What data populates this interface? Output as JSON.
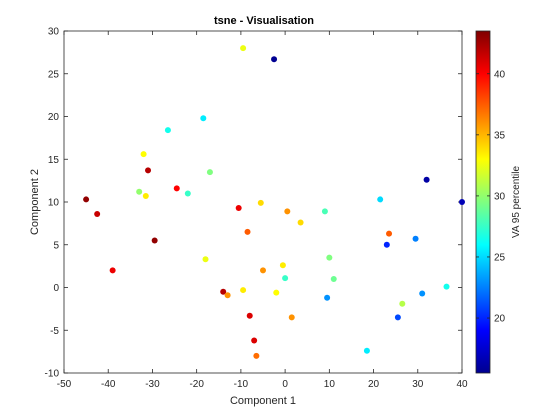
{
  "chart_data": {
    "type": "scatter",
    "title": "tsne - Visualisation",
    "xlabel": "Component 1",
    "ylabel": "Component 2",
    "xlim": [
      -50,
      40
    ],
    "ylim": [
      -10,
      30
    ],
    "xticks": [
      "-50",
      "-40",
      "-30",
      "-20",
      "-10",
      "0",
      "10",
      "20",
      "30",
      "40"
    ],
    "yticks": [
      "-10",
      "-5",
      "0",
      "5",
      "10",
      "15",
      "20",
      "25",
      "30"
    ],
    "grid": false,
    "colormap": "jet",
    "colorbar": {
      "label": "VA 95 percentile",
      "range": [
        15.5,
        43.5
      ],
      "ticks": [
        "20",
        "25",
        "30",
        "35",
        "40"
      ]
    },
    "points": [
      {
        "x": -45.0,
        "y": 10.3,
        "c": 43.0
      },
      {
        "x": -42.5,
        "y": 8.6,
        "c": 41.5
      },
      {
        "x": -39.0,
        "y": 2.0,
        "c": 40.5
      },
      {
        "x": -33.0,
        "y": 11.2,
        "c": 30.0
      },
      {
        "x": -32.0,
        "y": 15.6,
        "c": 33.0
      },
      {
        "x": -31.5,
        "y": 10.7,
        "c": 33.5
      },
      {
        "x": -31.0,
        "y": 13.7,
        "c": 42.0
      },
      {
        "x": -29.5,
        "y": 5.5,
        "c": 43.0
      },
      {
        "x": -26.5,
        "y": 18.4,
        "c": 26.5
      },
      {
        "x": -24.5,
        "y": 11.6,
        "c": 40.0
      },
      {
        "x": -22.0,
        "y": 11.0,
        "c": 27.5
      },
      {
        "x": -18.5,
        "y": 19.8,
        "c": 25.5
      },
      {
        "x": -18.0,
        "y": 3.3,
        "c": 32.5
      },
      {
        "x": -17.0,
        "y": 13.5,
        "c": 29.5
      },
      {
        "x": -14.0,
        "y": -0.5,
        "c": 42.0
      },
      {
        "x": -13.0,
        "y": -0.9,
        "c": 36.0
      },
      {
        "x": -10.5,
        "y": 9.3,
        "c": 40.5
      },
      {
        "x": -9.5,
        "y": 28.0,
        "c": 32.5
      },
      {
        "x": -9.5,
        "y": -0.3,
        "c": 33.5
      },
      {
        "x": -8.5,
        "y": 6.5,
        "c": 37.5
      },
      {
        "x": -8.0,
        "y": -3.3,
        "c": 41.0
      },
      {
        "x": -7.0,
        "y": -6.2,
        "c": 41.0
      },
      {
        "x": -6.5,
        "y": -8.0,
        "c": 37.0
      },
      {
        "x": -5.5,
        "y": 9.9,
        "c": 34.0
      },
      {
        "x": -5.0,
        "y": 2.0,
        "c": 36.0
      },
      {
        "x": -2.5,
        "y": 26.7,
        "c": 16.0
      },
      {
        "x": -2.0,
        "y": -0.6,
        "c": 33.0
      },
      {
        "x": -0.5,
        "y": 2.6,
        "c": 33.5
      },
      {
        "x": 0.0,
        "y": 1.1,
        "c": 27.5
      },
      {
        "x": 0.5,
        "y": 8.9,
        "c": 36.0
      },
      {
        "x": 1.5,
        "y": -3.5,
        "c": 36.0
      },
      {
        "x": 3.5,
        "y": 7.6,
        "c": 34.0
      },
      {
        "x": 9.0,
        "y": 8.9,
        "c": 28.0
      },
      {
        "x": 9.5,
        "y": -1.2,
        "c": 23.0
      },
      {
        "x": 10.0,
        "y": 3.5,
        "c": 29.5
      },
      {
        "x": 11.0,
        "y": 1.0,
        "c": 29.0
      },
      {
        "x": 18.5,
        "y": -7.4,
        "c": 25.5
      },
      {
        "x": 21.5,
        "y": 10.3,
        "c": 25.0
      },
      {
        "x": 23.0,
        "y": 5.0,
        "c": 20.0
      },
      {
        "x": 23.5,
        "y": 6.3,
        "c": 37.5
      },
      {
        "x": 25.5,
        "y": -3.5,
        "c": 21.0
      },
      {
        "x": 26.5,
        "y": -1.9,
        "c": 31.0
      },
      {
        "x": 29.5,
        "y": 5.7,
        "c": 22.5
      },
      {
        "x": 31.0,
        "y": -0.7,
        "c": 23.0
      },
      {
        "x": 32.0,
        "y": 12.6,
        "c": 16.5
      },
      {
        "x": 36.5,
        "y": 0.1,
        "c": 26.5
      },
      {
        "x": 40.0,
        "y": 10.0,
        "c": 17.0
      }
    ]
  }
}
